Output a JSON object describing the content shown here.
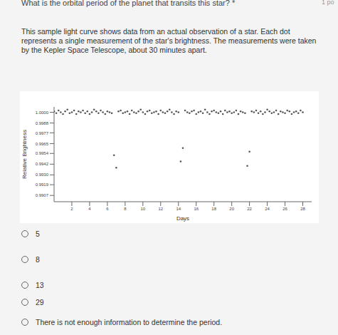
{
  "question": "What is the orbital period of the planet that transits this star? *",
  "points": "1 po",
  "description": "This sample light curve shows data from an actual observation of a star. Each dot represents a single measurement of the star's brightness. The measurements were taken by the Kepler Space Telescope, about 30 minutes apart.",
  "chart_data": {
    "type": "scatter",
    "x_label": "Days",
    "y_label": "Relative Brightness",
    "color": "#555555",
    "marker": "circle",
    "grid": false,
    "x": [
      0,
      0.25,
      0.5,
      0.75,
      1,
      1.25,
      1.5,
      1.75,
      2,
      2.25,
      2.5,
      2.75,
      3,
      3.25,
      3.5,
      3.75,
      4,
      4.25,
      4.5,
      4.75,
      5,
      5.25,
      5.5,
      5.75,
      6,
      6.25,
      6.5,
      6.75,
      7,
      7.25,
      7.5,
      7.75,
      8,
      8.25,
      8.5,
      8.75,
      9,
      9.25,
      9.5,
      9.75,
      10,
      10.25,
      10.5,
      10.75,
      11,
      11.25,
      11.5,
      11.75,
      12,
      12.25,
      12.5,
      12.75,
      13,
      13.25,
      13.5,
      13.75,
      14,
      14.25,
      14.5,
      14.75,
      15,
      15.25,
      15.5,
      15.75,
      16,
      16.25,
      16.5,
      16.75,
      17,
      17.25,
      17.5,
      17.75,
      18,
      18.25,
      18.5,
      18.75,
      19,
      19.25,
      19.5,
      19.75,
      20,
      20.25,
      20.5,
      20.75,
      21,
      21.25,
      21.5,
      21.75,
      22,
      22.25,
      22.5,
      22.75,
      23,
      23.25,
      23.5,
      23.75,
      24,
      24.25,
      24.5,
      24.75,
      25,
      25.25,
      25.5,
      25.75,
      26,
      26.25,
      26.5,
      26.75,
      27,
      27.25,
      27.5,
      27.75,
      28
    ],
    "values": [
      1.0001,
      0.9999,
      1.0002,
      1.0,
      0.9998,
      1.0001,
      1.0003,
      0.9999,
      1.0,
      1.0002,
      0.9998,
      1.0001,
      1.0,
      1.0002,
      0.9999,
      1.0001,
      0.9998,
      1.0,
      1.0003,
      1.0001,
      0.9999,
      1.0002,
      1.0,
      0.9998,
      1.0001,
      1.0,
      0.9999,
      0.9952,
      0.9938,
      1.0001,
      1.0002,
      0.9999,
      1.0,
      1.0001,
      0.9998,
      1.0002,
      1.0,
      0.9999,
      1.0001,
      1.0003,
      1.0,
      0.9998,
      1.0001,
      1.0002,
      0.9999,
      1.0,
      1.0001,
      0.9998,
      1.0002,
      1.0,
      0.9999,
      1.0001,
      1.0003,
      1.0,
      0.9998,
      1.0001,
      1.0,
      0.9945,
      0.996,
      1.0002,
      1.0,
      0.9999,
      1.0001,
      1.0002,
      0.9998,
      1.0,
      1.0001,
      0.9999,
      1.0003,
      1.0,
      0.9998,
      1.0001,
      1.0002,
      1.0,
      0.9999,
      1.0001,
      0.9998,
      1.0002,
      1.0,
      1.0001,
      0.9999,
      1.0,
      1.0002,
      0.9998,
      1.0001,
      1.0,
      0.9999,
      0.994,
      0.9956,
      1.0001,
      1.0,
      1.0002,
      0.9999,
      1.0001,
      0.9998,
      1.0,
      1.0003,
      1.0001,
      0.9999,
      1.0,
      1.0002,
      0.9998,
      1.0001,
      1.0,
      0.9999,
      1.0002,
      1.0001,
      0.9998,
      1.0,
      1.0001,
      0.9999,
      1.0002,
      1.0
    ],
    "xlim": [
      0,
      29
    ],
    "xticks": [
      2,
      4,
      6,
      8,
      10,
      12,
      14,
      16,
      18,
      20,
      22,
      24,
      26,
      28
    ],
    "ylim": [
      0.99,
      1.0006
    ],
    "yticks": [
      {
        "value": 1.0,
        "label": "1.0000"
      },
      0.9988,
      0.9977,
      0.9965,
      0.9954,
      0.9942,
      {
        "value": 0.993,
        "label": "0.9930"
      },
      0.9919,
      0.9907
    ]
  },
  "options": [
    "5",
    "8",
    "13",
    "29",
    "There is not enough information to determine the period."
  ]
}
